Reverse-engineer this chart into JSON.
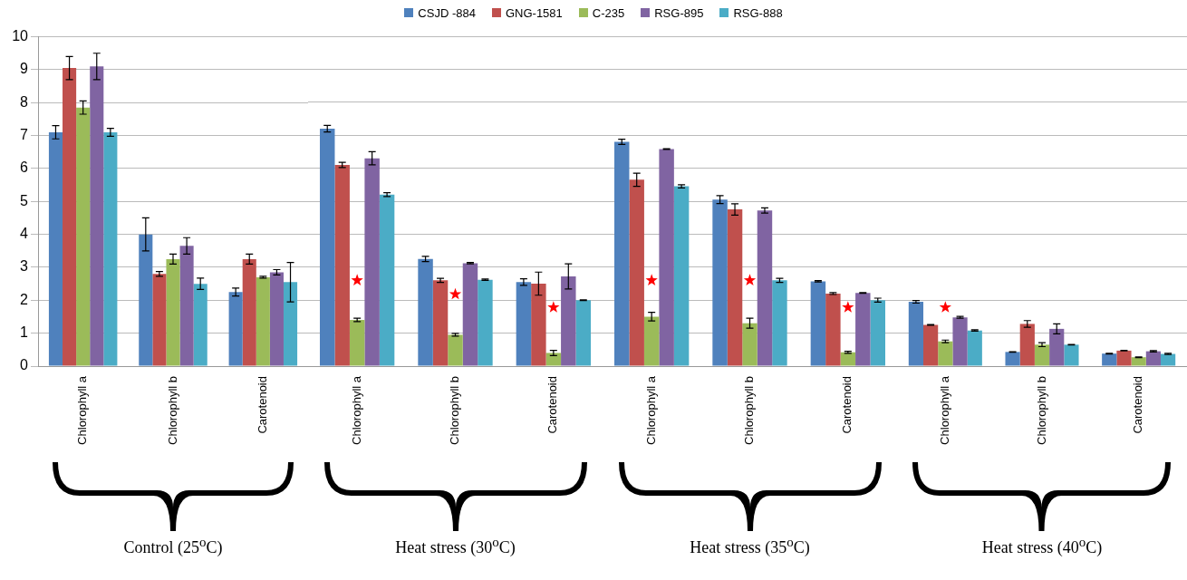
{
  "chart_data": [
    {
      "type": "bar",
      "xlabel": "Control (25$^{o}$C)",
      "categories": [
        "Chlorophyll a",
        "Chlorophyll b",
        "Carotenoid"
      ],
      "ylim": [
        0,
        10
      ],
      "yticks": [
        0,
        1,
        2,
        3,
        4,
        5,
        6,
        7,
        8,
        9,
        10
      ],
      "grid": "y",
      "legend": "top",
      "series": [
        {
          "name": "CSJD -884",
          "color": "#4f81bd",
          "values": [
            7.1,
            4.0,
            2.25
          ],
          "errors": [
            0.2,
            0.5,
            0.12
          ]
        },
        {
          "name": "GNG-1581",
          "color": "#c0504d",
          "values": [
            9.05,
            2.8,
            3.25
          ],
          "errors": [
            0.35,
            0.07,
            0.15
          ]
        },
        {
          "name": "C-235",
          "color": "#9bbb59",
          "values": [
            7.85,
            3.25,
            2.7
          ],
          "errors": [
            0.2,
            0.15,
            0.03
          ]
        },
        {
          "name": "RSG-895",
          "color": "#8064a2",
          "values": [
            9.1,
            3.65,
            2.85
          ],
          "errors": [
            0.4,
            0.25,
            0.08
          ]
        },
        {
          "name": "RSG-888",
          "color": "#4bacc6",
          "values": [
            7.1,
            2.5,
            2.55
          ],
          "errors": [
            0.12,
            0.17,
            0.6
          ]
        }
      ]
    },
    {
      "type": "bar",
      "xlabel": "Heat stress (30$^{o}$C)",
      "categories": [
        "Chlorophyll a",
        "Chlorophyll b",
        "Carotenoid"
      ],
      "ylim": [
        0,
        10
      ],
      "yticks": [
        0,
        1,
        2,
        3,
        4,
        5,
        6,
        7,
        8,
        9,
        10
      ],
      "grid": "y",
      "tick_labels": "x",
      "series": [
        {
          "type": "scatter",
          "color": "#ff0000",
          "marker": "star",
          "x": [
            "Chlorophyll a",
            "Chlorophyll b",
            "Carotenoid"
          ],
          "values": [
            2.6,
            2.18,
            1.78
          ]
        },
        {
          "color": "#4f81bd",
          "values": [
            7.2,
            3.25,
            2.55
          ],
          "errors": [
            0.1,
            0.08,
            0.1
          ]
        },
        {
          "color": "#c0504d",
          "values": [
            6.1,
            2.6,
            2.5
          ],
          "errors": [
            0.08,
            0.06,
            0.35
          ]
        },
        {
          "color": "#9bbb59",
          "values": [
            1.4,
            0.95,
            0.4
          ],
          "errors": [
            0.05,
            0.04,
            0.08
          ]
        },
        {
          "color": "#8064a2",
          "values": [
            6.3,
            3.12,
            2.72
          ],
          "errors": [
            0.2,
            0.02,
            0.38
          ]
        },
        {
          "color": "#4bacc6",
          "values": [
            5.2,
            2.62,
            2.0
          ],
          "errors": [
            0.06,
            0.02,
            0.01
          ]
        }
      ]
    },
    {
      "type": "bar",
      "xlabel": "Heat stress (35$^{o}$C)",
      "categories": [
        "Chlorophyll a",
        "Chlorophyll b",
        "Carotenoid"
      ],
      "ylim": [
        0,
        10
      ],
      "yticks": [
        0,
        1,
        2,
        3,
        4,
        5,
        6,
        7,
        8,
        9,
        10
      ],
      "grid": "y",
      "tick_labels": "x",
      "series": [
        {
          "type": "scatter",
          "color": "#ff0000",
          "marker": "star",
          "x": [
            "Chlorophyll a",
            "Chlorophyll b",
            "Carotenoid"
          ],
          "values": [
            2.6,
            2.6,
            1.78
          ]
        },
        {
          "color": "#4f81bd",
          "values": [
            6.8,
            5.05,
            2.57
          ],
          "errors": [
            0.08,
            0.12,
            0.02
          ]
        },
        {
          "color": "#c0504d",
          "values": [
            5.65,
            4.75,
            2.2
          ],
          "errors": [
            0.2,
            0.17,
            0.03
          ]
        },
        {
          "color": "#9bbb59",
          "values": [
            1.5,
            1.3,
            0.42
          ],
          "errors": [
            0.13,
            0.15,
            0.03
          ]
        },
        {
          "color": "#8064a2",
          "values": [
            6.58,
            4.72,
            2.22
          ],
          "errors": [
            0.01,
            0.08,
            0.01
          ]
        },
        {
          "color": "#4bacc6",
          "values": [
            5.45,
            2.6,
            2.0
          ],
          "errors": [
            0.05,
            0.06,
            0.06
          ]
        }
      ]
    },
    {
      "type": "bar",
      "xlabel": "Heat stress (40$^{o}$C)",
      "categories": [
        "Chlorophyll a",
        "Chlorophyll b",
        "Carotenoid"
      ],
      "ylim": [
        0,
        10
      ],
      "yticks": [
        0,
        1,
        2,
        3,
        4,
        5,
        6,
        7,
        8,
        9,
        10
      ],
      "grid": "y",
      "tick_labels": "x",
      "series": [
        {
          "type": "scatter",
          "color": "#ff0000",
          "marker": "star",
          "x": [
            "Chlorophyll a"
          ],
          "values": [
            1.78
          ]
        },
        {
          "color": "#4f81bd",
          "values": [
            1.95,
            0.43,
            0.38
          ],
          "errors": [
            0.04,
            0.01,
            0.01
          ]
        },
        {
          "color": "#c0504d",
          "values": [
            1.25,
            1.28,
            0.47
          ],
          "errors": [
            0.01,
            0.1,
            0.01
          ]
        },
        {
          "color": "#9bbb59",
          "values": [
            0.75,
            0.65,
            0.27
          ],
          "errors": [
            0.04,
            0.06,
            0.01
          ]
        },
        {
          "color": "#8064a2",
          "values": [
            1.48,
            1.13,
            0.45
          ],
          "errors": [
            0.03,
            0.15,
            0.02
          ]
        },
        {
          "color": "#4bacc6",
          "values": [
            1.08,
            0.65,
            0.37
          ],
          "errors": [
            0.02,
            0.01,
            0.02
          ]
        }
      ]
    }
  ]
}
